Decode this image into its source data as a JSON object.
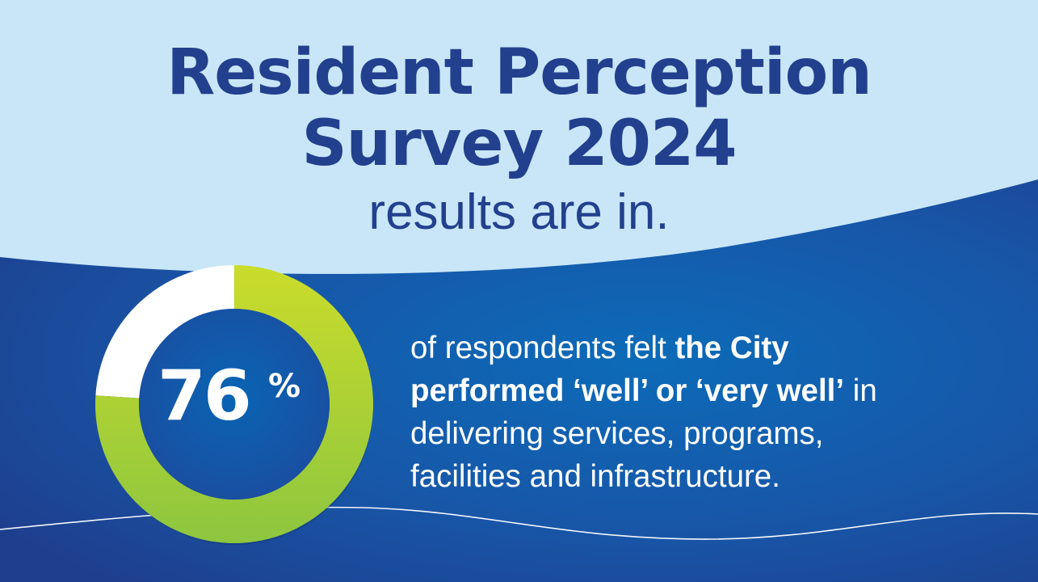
{
  "headline": {
    "title_line1": "Resident Perception",
    "title_line2": "Survey 2024",
    "subtitle": "results are in."
  },
  "chart_data": {
    "type": "pie",
    "variant": "donut",
    "value_percent": 76,
    "value_label": "76",
    "unit": "%",
    "segments": [
      {
        "value": 76,
        "color": "#a6cf38"
      },
      {
        "value": 24,
        "color": "#ffffff"
      }
    ]
  },
  "statement": {
    "part1": "of respondents felt ",
    "bold1": "the City",
    "bold2": "performed ‘well’ or ‘very well’",
    "part2": " in",
    "line3": "delivering services, programs,",
    "line4": "facilities and infrastructure."
  },
  "colors": {
    "light_bg": "#c8e6f8",
    "dark_blue": "#1f3f8f",
    "mid_blue": "#0d63b3",
    "title": "#23408e",
    "green_top": "#c8dc2c",
    "green_bottom": "#8cc63f"
  }
}
